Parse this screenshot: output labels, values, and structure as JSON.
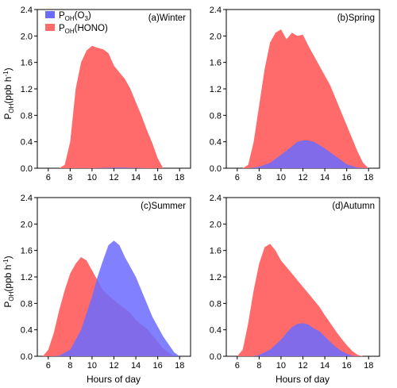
{
  "colors": {
    "O3": "#6b6bff",
    "HONO": "#ff6b6b",
    "overlap": "#c34a5e"
  },
  "legend": [
    {
      "key": "O3",
      "main": "P",
      "sub": "OH",
      "suffix_pre": "(O",
      "suffix_sub": "3",
      "suffix_post": ")"
    },
    {
      "key": "HONO",
      "main": "P",
      "sub": "OH",
      "suffix_pre": "(HONO)",
      "suffix_sub": "",
      "suffix_post": ""
    }
  ],
  "ylabel": {
    "main": "P",
    "sub": "OH",
    "rest": "(ppb h",
    "sup": "-1",
    "end": ")"
  },
  "xlabel": "Hours of day",
  "chart_data": [
    {
      "type": "area",
      "title": "(a)Winter",
      "xlim": [
        5,
        19
      ],
      "ylim": [
        0,
        2.4
      ],
      "xticks": [
        6,
        8,
        10,
        12,
        14,
        16,
        18
      ],
      "yticks": [
        "0.0",
        "0.4",
        "0.8",
        "1.2",
        "1.6",
        "2.0",
        "2.4"
      ],
      "series": [
        {
          "name": "P_OH(O3)",
          "key": "O3",
          "x": [
            7,
            8,
            9,
            10,
            11,
            12,
            13,
            14,
            15,
            16,
            17
          ],
          "y": [
            0,
            0,
            0,
            0,
            0.005,
            0.01,
            0.01,
            0.005,
            0,
            0,
            0
          ]
        },
        {
          "name": "P_OH(HONO)",
          "key": "HONO",
          "x": [
            7,
            7.5,
            8,
            8.5,
            9,
            9.5,
            10,
            10.5,
            11,
            11.5,
            12,
            12.5,
            13,
            13.5,
            14,
            14.5,
            15,
            15.5,
            16,
            16.5
          ],
          "y": [
            0,
            0.05,
            0.4,
            1.2,
            1.6,
            1.78,
            1.85,
            1.82,
            1.8,
            1.74,
            1.55,
            1.45,
            1.35,
            1.2,
            1.0,
            0.8,
            0.58,
            0.38,
            0.15,
            0
          ]
        }
      ]
    },
    {
      "type": "area",
      "title": "(b)Spring",
      "xlim": [
        5,
        19
      ],
      "ylim": [
        0,
        2.4
      ],
      "xticks": [
        6,
        8,
        10,
        12,
        14,
        16,
        18
      ],
      "yticks": [
        "0.0",
        "0.4",
        "0.8",
        "1.2",
        "1.6",
        "2.0",
        "2.4"
      ],
      "series": [
        {
          "name": "P_OH(O3)",
          "key": "O3",
          "x": [
            7,
            8,
            9,
            10,
            11,
            11.5,
            12,
            12.5,
            13,
            13.5,
            14,
            15,
            16,
            17,
            18
          ],
          "y": [
            0,
            0.02,
            0.08,
            0.2,
            0.33,
            0.4,
            0.42,
            0.42,
            0.4,
            0.35,
            0.3,
            0.18,
            0.06,
            0.01,
            0
          ]
        },
        {
          "name": "P_OH(HONO)",
          "key": "HONO",
          "x": [
            6.5,
            7,
            7.5,
            8,
            8.5,
            9,
            9.5,
            10,
            10.5,
            11,
            11.5,
            12,
            12.5,
            13,
            13.5,
            14,
            14.5,
            15,
            15.5,
            16,
            16.5,
            17,
            17.5,
            18
          ],
          "y": [
            0,
            0.05,
            0.4,
            0.95,
            1.5,
            1.9,
            2.05,
            2.1,
            1.95,
            2.05,
            2.0,
            2.02,
            1.85,
            1.7,
            1.55,
            1.4,
            1.25,
            1.05,
            0.85,
            0.65,
            0.45,
            0.25,
            0.08,
            0
          ]
        }
      ]
    },
    {
      "type": "area",
      "title": "(c)Summer",
      "xlim": [
        5,
        19
      ],
      "ylim": [
        0,
        2.4
      ],
      "xticks": [
        6,
        8,
        10,
        12,
        14,
        16,
        18
      ],
      "yticks": [
        "0.0",
        "0.4",
        "0.8",
        "1.2",
        "1.6",
        "2.0",
        "2.4"
      ],
      "series": [
        {
          "name": "P_OH(O3)",
          "key": "O3",
          "x": [
            6.5,
            7,
            8,
            9,
            10,
            10.5,
            11,
            11.5,
            12,
            12.5,
            13,
            13.5,
            14,
            14.5,
            15,
            15.5,
            16,
            16.5,
            17,
            17.5,
            18
          ],
          "y": [
            0,
            0.01,
            0.1,
            0.4,
            0.9,
            1.2,
            1.45,
            1.68,
            1.75,
            1.68,
            1.5,
            1.35,
            1.2,
            1.0,
            0.8,
            0.6,
            0.45,
            0.3,
            0.18,
            0.06,
            0
          ]
        },
        {
          "name": "P_OH(HONO)",
          "key": "HONO",
          "x": [
            5.5,
            6,
            6.5,
            7,
            7.5,
            8,
            8.5,
            9,
            9.5,
            10,
            10.5,
            11,
            11.5,
            12,
            12.5,
            13,
            13.5,
            14,
            14.5,
            15,
            15.5,
            16,
            16.5,
            17,
            17.5
          ],
          "y": [
            0,
            0.1,
            0.35,
            0.7,
            1.0,
            1.25,
            1.4,
            1.5,
            1.45,
            1.3,
            1.15,
            1.0,
            0.92,
            0.85,
            0.78,
            0.72,
            0.65,
            0.55,
            0.48,
            0.42,
            0.32,
            0.22,
            0.12,
            0.05,
            0
          ]
        }
      ]
    },
    {
      "type": "area",
      "title": "(d)Autumn",
      "xlim": [
        5,
        19
      ],
      "ylim": [
        0,
        2.4
      ],
      "xticks": [
        6,
        8,
        10,
        12,
        14,
        16,
        18
      ],
      "yticks": [
        "0.0",
        "0.4",
        "0.8",
        "1.2",
        "1.6",
        "2.0",
        "2.4"
      ],
      "series": [
        {
          "name": "P_OH(O3)",
          "key": "O3",
          "x": [
            7.5,
            8,
            9,
            10,
            10.5,
            11,
            11.5,
            12,
            12.5,
            13,
            13.5,
            14,
            14.5,
            15,
            15.5,
            16,
            16.5,
            17
          ],
          "y": [
            0,
            0.02,
            0.1,
            0.25,
            0.35,
            0.44,
            0.49,
            0.5,
            0.48,
            0.42,
            0.38,
            0.3,
            0.22,
            0.14,
            0.08,
            0.04,
            0.01,
            0
          ]
        },
        {
          "name": "P_OH(HONO)",
          "key": "HONO",
          "x": [
            6,
            6.5,
            7,
            7.5,
            8,
            8.5,
            9,
            9.5,
            10,
            10.5,
            11,
            11.5,
            12,
            12.5,
            13,
            13.5,
            14,
            14.5,
            15,
            15.5,
            16,
            16.5,
            17,
            17.5
          ],
          "y": [
            0,
            0.1,
            0.5,
            1.0,
            1.4,
            1.65,
            1.7,
            1.6,
            1.45,
            1.35,
            1.25,
            1.15,
            1.05,
            0.95,
            0.85,
            0.75,
            0.62,
            0.5,
            0.38,
            0.27,
            0.17,
            0.08,
            0.02,
            0
          ]
        }
      ]
    }
  ]
}
